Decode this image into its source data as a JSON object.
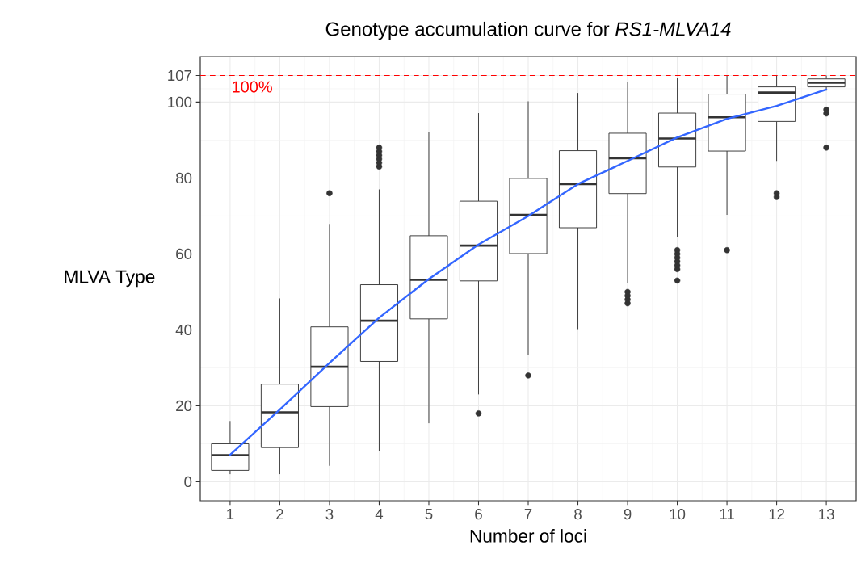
{
  "chart_data": {
    "type": "box",
    "title": "Genotype accumulation curve for *RS1-MLVA14*",
    "xlabel": "Number of loci",
    "ylabel": "MLVA Type",
    "categories": [
      "1",
      "2",
      "3",
      "4",
      "5",
      "6",
      "7",
      "8",
      "9",
      "10",
      "11",
      "12",
      "13"
    ],
    "boxes": [
      {
        "low": 2,
        "q1": 3,
        "median": 7,
        "q3": 10,
        "high": 16
      },
      {
        "low": 2,
        "q1": 9,
        "median": 18.3,
        "q3": 25.7,
        "high": 48.3
      },
      {
        "low": 4.2,
        "q1": 19.8,
        "median": 30.3,
        "q3": 40.8,
        "high": 67.9,
        "outliers": [
          76
        ]
      },
      {
        "low": 8.1,
        "q1": 31.7,
        "median": 42.4,
        "q3": 51.9,
        "high": 77,
        "outliers": [
          83,
          84,
          85,
          86,
          87,
          88
        ]
      },
      {
        "low": 15.4,
        "q1": 42.9,
        "median": 53.2,
        "q3": 64.8,
        "high": 92
      },
      {
        "low": 23,
        "q1": 52.9,
        "median": 62.2,
        "q3": 73.9,
        "high": 97.1,
        "outliers": [
          18
        ]
      },
      {
        "low": 33.5,
        "q1": 60.1,
        "median": 70.3,
        "q3": 79.9,
        "high": 100.2,
        "outliers": [
          28
        ]
      },
      {
        "low": 40.2,
        "q1": 66.9,
        "median": 78.4,
        "q3": 87.2,
        "high": 102.4
      },
      {
        "low": 52.3,
        "q1": 75.9,
        "median": 85.2,
        "q3": 91.8,
        "high": 105.3,
        "outliers": [
          47,
          48,
          49,
          50
        ]
      },
      {
        "low": 64.4,
        "q1": 82.9,
        "median": 90.4,
        "q3": 97.1,
        "high": 106.3,
        "outliers": [
          53,
          56,
          57,
          58,
          59,
          60,
          61
        ]
      },
      {
        "low": 70.3,
        "q1": 87.1,
        "median": 96,
        "q3": 102.1,
        "high": 107,
        "outliers": [
          61
        ]
      },
      {
        "low": 84.5,
        "q1": 94.9,
        "median": 102.5,
        "q3": 104,
        "high": 107,
        "outliers": [
          75,
          76
        ]
      },
      {
        "low": 103,
        "q1": 104,
        "median": 105.1,
        "q3": 106.1,
        "high": 107,
        "outliers": [
          88,
          97,
          98
        ]
      }
    ],
    "series": [
      {
        "type": "line",
        "color": "#3366ff",
        "values": [
          7.1,
          19,
          31.3,
          43.2,
          53.4,
          62.5,
          70,
          78.4,
          84.5,
          90.7,
          95.6,
          99,
          103.3
        ]
      }
    ],
    "ylim": [
      -5,
      112
    ],
    "yticks": [
      0,
      20,
      40,
      60,
      80,
      100,
      107
    ],
    "grid": true,
    "ref_lines": [
      {
        "axis": "y",
        "value": 107,
        "color": "#ff0000",
        "line_style": "dashed"
      }
    ],
    "annotations": [
      "100%"
    ]
  }
}
